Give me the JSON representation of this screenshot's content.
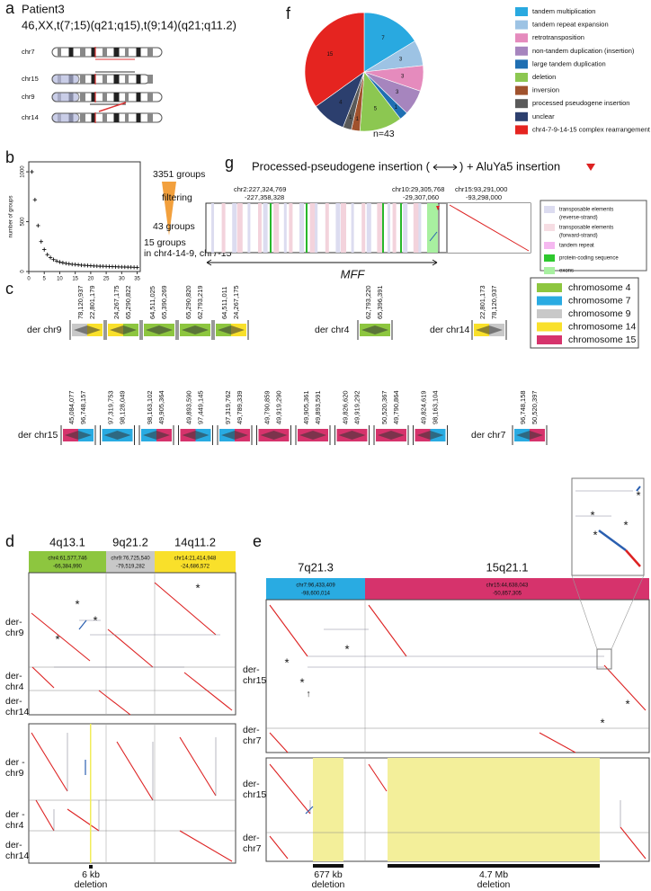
{
  "panel_labels": [
    "a",
    "b",
    "c",
    "d",
    "e",
    "f",
    "g"
  ],
  "a": {
    "title": "Patient3",
    "karyotype": "46,XX,t(7;15)(q21;q15),t(9;14)(q21;q11.2)",
    "chromosomes": [
      "chr7",
      "chr15",
      "chr9",
      "chr14"
    ]
  },
  "b": {
    "annotations": [
      "3351 groups",
      "filtering",
      "43 groups",
      "15 groups",
      "in chr4-14-9, chr7-15"
    ]
  },
  "chart_data": [
    {
      "type": "scatter",
      "y_label": "number of groups",
      "x": [
        1,
        2,
        3,
        4,
        5,
        6,
        7,
        8,
        9,
        10,
        11,
        12,
        13,
        14,
        15,
        16,
        17,
        18,
        19,
        20,
        21,
        22,
        23,
        24,
        25,
        26,
        27,
        28,
        29,
        30,
        31,
        32,
        33,
        34,
        35
      ],
      "values": [
        1000,
        720,
        460,
        300,
        220,
        170,
        140,
        120,
        105,
        95,
        88,
        82,
        77,
        73,
        70,
        67,
        64,
        62,
        60,
        58,
        56,
        55,
        53,
        52,
        51,
        50,
        49,
        48,
        47,
        46,
        45,
        44,
        43,
        42,
        41
      ],
      "xlim": [
        0,
        36
      ],
      "ylim": [
        0,
        1100
      ],
      "xticks": [
        0,
        5,
        10,
        15,
        20,
        25,
        30,
        35
      ],
      "yticks": [
        0,
        500,
        1000
      ]
    },
    {
      "type": "pie",
      "categories": [
        "tandem multiplication",
        "tandem repeat expansion",
        "retrotransposition",
        "non-tandem duplication (insertion)",
        "large tandem duplication",
        "deletion",
        "inversion",
        "processed pseudogene insertion",
        "unclear",
        "chr4-7-9-14-15 complex rearrangement"
      ],
      "values": [
        7,
        3,
        3,
        3,
        1,
        5,
        1,
        1,
        4,
        15
      ],
      "colors": [
        "#29a9e0",
        "#9dc3e4",
        "#e58bbd",
        "#a685be",
        "#1f6fb2",
        "#8cc751",
        "#a0522d",
        "#5a5a5a",
        "#2c3f6e",
        "#e52420"
      ],
      "annotation": "n=43"
    }
  ],
  "c": {
    "legend": [
      {
        "name": "chromosome 4",
        "color": "#8dc63f"
      },
      {
        "name": "chromosome 7",
        "color": "#29abe2"
      },
      {
        "name": "chromosome 9",
        "color": "#c8c8c8"
      },
      {
        "name": "chromosome 14",
        "color": "#f9e02a"
      },
      {
        "name": "chromosome 15",
        "color": "#d6336c"
      }
    ],
    "rows": [
      {
        "name": "der chr9",
        "blocks": [
          {
            "labels": [
              "78,120,937",
              "22,801,179"
            ],
            "colors": [
              "#c8c8c8",
              "#f9e02a"
            ]
          },
          {
            "labels": [
              "24,267,175",
              "65,290,822"
            ],
            "colors": [
              "#f9e02a",
              "#8dc63f"
            ]
          },
          {
            "labels": [
              "64,511,025",
              "65,390,269"
            ],
            "colors": [
              "#8dc63f",
              "#8dc63f"
            ]
          },
          {
            "labels": [
              "65,290,820",
              "62,793,219"
            ],
            "colors": [
              "#8dc63f",
              "#8dc63f"
            ]
          },
          {
            "labels": [
              "64,511,011",
              "24,267,175"
            ],
            "colors": [
              "#8dc63f",
              "#f9e02a"
            ]
          }
        ]
      },
      {
        "name": "der chr4",
        "blocks": [
          {
            "labels": [
              "62,793,220",
              "65,396,391"
            ],
            "colors": [
              "#8dc63f",
              "#8dc63f"
            ]
          }
        ]
      },
      {
        "name": "der chr14",
        "blocks": [
          {
            "labels": [
              "22,801,173",
              "78,120,937"
            ],
            "colors": [
              "#f9e02a",
              "#c8c8c8"
            ]
          }
        ]
      },
      {
        "name": "der chr15",
        "blocks": [
          {
            "labels": [
              "45,084,077",
              "96,748,157"
            ],
            "colors": [
              "#d6336c",
              "#29abe2"
            ]
          },
          {
            "labels": [
              "97,319,753",
              "98,128,049"
            ],
            "colors": [
              "#29abe2",
              "#29abe2"
            ]
          },
          {
            "labels": [
              "98,163,102",
              "49,905,364"
            ],
            "colors": [
              "#29abe2",
              "#d6336c"
            ]
          },
          {
            "labels": [
              "49,893,590",
              "97,449,145"
            ],
            "colors": [
              "#d6336c",
              "#29abe2"
            ]
          },
          {
            "labels": [
              "97,319,762",
              "49,789,339"
            ],
            "colors": [
              "#29abe2",
              "#d6336c"
            ]
          },
          {
            "labels": [
              "49,790,859",
              "49,919,290"
            ],
            "colors": [
              "#d6336c",
              "#d6336c"
            ]
          },
          {
            "labels": [
              "49,905,361",
              "49,893,591"
            ],
            "colors": [
              "#d6336c",
              "#d6336c"
            ]
          },
          {
            "labels": [
              "49,826,620",
              "49,919,292"
            ],
            "colors": [
              "#d6336c",
              "#d6336c"
            ]
          },
          {
            "labels": [
              "50,520,367",
              "49,790,864"
            ],
            "colors": [
              "#d6336c",
              "#d6336c"
            ]
          },
          {
            "labels": [
              "49,824,619",
              "98,163,104"
            ],
            "colors": [
              "#d6336c",
              "#29abe2"
            ]
          }
        ]
      },
      {
        "name": "der chr7",
        "blocks": [
          {
            "labels": [
              "96,748,158",
              "50,520,397"
            ],
            "colors": [
              "#29abe2",
              "#d6336c"
            ]
          }
        ]
      }
    ]
  },
  "d": {
    "bands": [
      "4q13.1",
      "9q21.2",
      "14q11.2"
    ],
    "headers": [
      [
        "chr4:61,577,746",
        "-66,384,990"
      ],
      [
        "chr9:76,725,540",
        "-79,519,282"
      ],
      [
        "chr14:21,414,948",
        "-24,686,572"
      ]
    ],
    "top_rows": [
      [
        "der-",
        "chr9"
      ],
      [
        "der-",
        "chr4"
      ],
      [
        "der-",
        "chr14"
      ]
    ],
    "bottom_rows": [
      [
        "der -",
        "chr9"
      ],
      [
        "der -",
        "chr4"
      ],
      [
        "der-",
        "chr14"
      ]
    ],
    "deletion": [
      "6 kb",
      "deletion"
    ],
    "asterisk": "*"
  },
  "e": {
    "bands": [
      "7q21.3",
      "15q21.1"
    ],
    "headers": [
      [
        "chr7:96,433,409",
        "-98,600,014"
      ],
      [
        "chr15:44,638,043",
        "-50,857,305"
      ]
    ],
    "rows": [
      [
        "der-",
        "chr15"
      ],
      [
        "der-",
        "chr7"
      ]
    ],
    "deletions": [
      [
        "677 kb",
        "deletion"
      ],
      [
        "4.7 Mb",
        "deletion"
      ]
    ],
    "asterisk": "*",
    "arrow": "↑"
  },
  "g": {
    "title": [
      "Processed-pseudogene insertion (",
      ") + AluYa5 insertion"
    ],
    "coords": [
      [
        "chr2:227,324,769",
        "-227,358,328"
      ],
      [
        "chr10:29,305,768",
        "-29,307,060"
      ],
      [
        "chr15:93,291,000",
        "-93,298,000"
      ]
    ],
    "gene": "MFF",
    "legend": [
      [
        "transposable elements",
        "(reverse-strand)"
      ],
      [
        "transposable elements",
        "(forward-strand)"
      ],
      [
        "tandem repeat"
      ],
      [
        "protein-coding sequence"
      ],
      [
        "exons"
      ]
    ]
  }
}
